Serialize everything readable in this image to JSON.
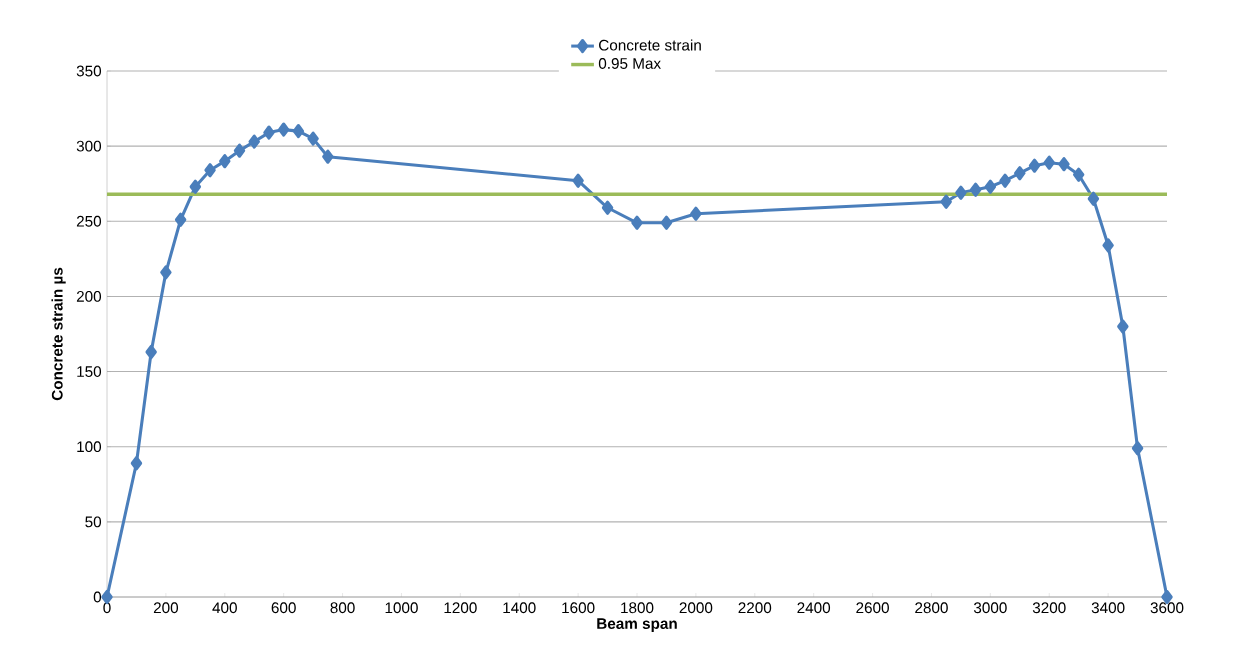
{
  "chart_data": {
    "type": "line",
    "xlabel": "Beam span",
    "ylabel": "Concrete strain µs",
    "xlim": [
      0,
      3600
    ],
    "ylim": [
      0,
      350
    ],
    "xticks": [
      0,
      200,
      400,
      600,
      800,
      1000,
      1200,
      1400,
      1600,
      1800,
      2000,
      2200,
      2400,
      2600,
      2800,
      3000,
      3200,
      3400,
      3600
    ],
    "yticks": [
      0,
      50,
      100,
      150,
      200,
      250,
      300,
      350
    ],
    "grid": "y",
    "legend": "top",
    "series": [
      {
        "name": "Concrete strain",
        "color": "#4a7ebb",
        "marker": "diamond",
        "line_style": "solid",
        "x": [
          0,
          100,
          150,
          200,
          250,
          300,
          350,
          400,
          450,
          500,
          550,
          600,
          650,
          700,
          750,
          1600,
          1700,
          1800,
          1900,
          2000,
          2850,
          2900,
          2950,
          3000,
          3050,
          3100,
          3150,
          3200,
          3250,
          3300,
          3350,
          3400,
          3450,
          3500,
          3600
        ],
        "values": [
          0,
          89,
          163,
          216,
          251,
          273,
          284,
          290,
          297,
          303,
          309,
          311,
          310,
          305,
          293,
          277,
          259,
          249,
          249,
          255,
          263,
          269,
          271,
          273,
          277,
          282,
          287,
          289,
          288,
          281,
          265,
          234,
          180,
          99,
          0
        ]
      },
      {
        "name": "0.95 Max",
        "color": "#9bbb59",
        "marker": "none",
        "line_style": "solid",
        "x": [
          0,
          3600
        ],
        "values": [
          268,
          268
        ]
      }
    ]
  }
}
